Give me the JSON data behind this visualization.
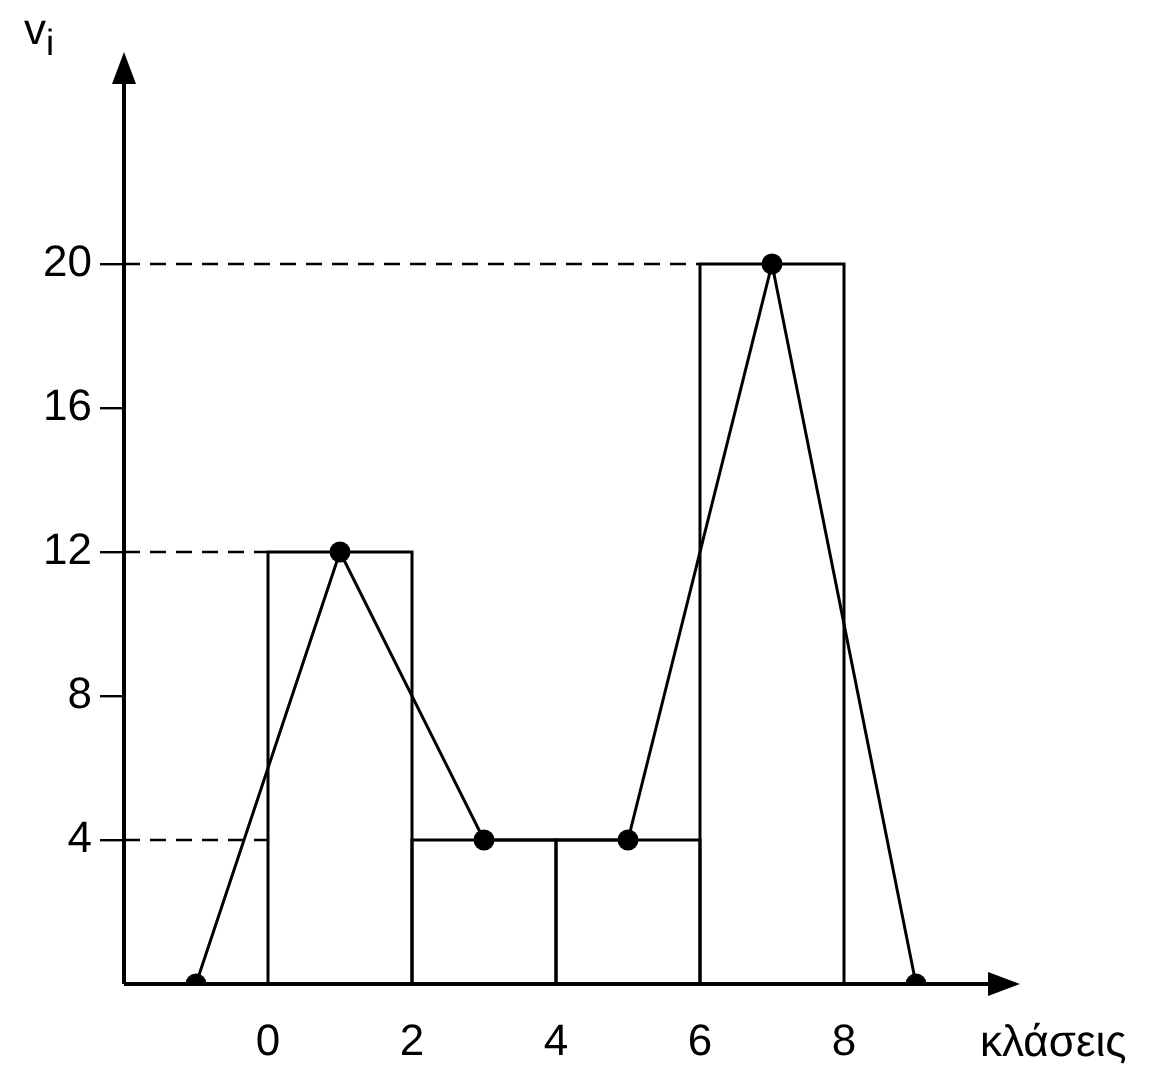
{
  "chart_data": {
    "type": "histogram",
    "xlabel": "κλάσεις",
    "ylabel": "v$_{i}$",
    "bins": [
      0,
      2,
      4,
      6,
      8
    ],
    "values": [
      12,
      4,
      4,
      20
    ],
    "color": "#000000",
    "series": [
      {
        "type": "line",
        "x": [
          -1,
          1,
          3,
          5,
          7,
          9
        ],
        "values": [
          0,
          12,
          4,
          4,
          20,
          0
        ],
        "color": "#000000"
      }
    ],
    "xlim": [
      -2,
      10
    ],
    "ylim": [
      0,
      25
    ],
    "xticks": [
      0,
      2,
      4,
      6,
      8
    ],
    "yticks": [
      4,
      8,
      12,
      16,
      20
    ],
    "ref_lines": [
      {
        "axis": "y",
        "value": 4
      },
      {
        "axis": "y",
        "value": 12
      },
      {
        "axis": "y",
        "value": 20
      }
    ],
    "line_style": "solid",
    "marker": "circle",
    "grid": false,
    "legend": false
  }
}
